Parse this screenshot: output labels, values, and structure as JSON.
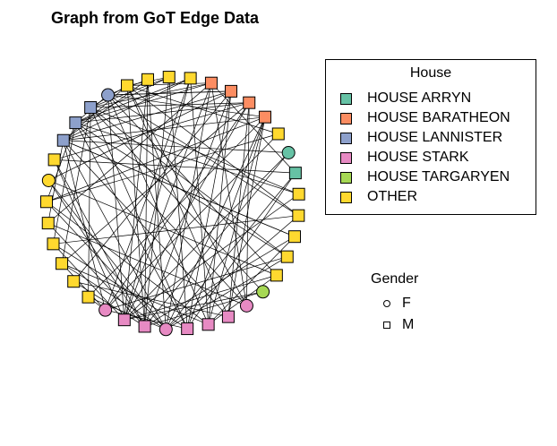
{
  "title": "Graph from GoT Edge Data",
  "colors": {
    "HOUSE ARRYN": "#66c2a5",
    "HOUSE BARATHEON": "#fc8d62",
    "HOUSE LANNISTER": "#8da0cb",
    "HOUSE STARK": "#e78ac3",
    "HOUSE TARGARYEN": "#a6d854",
    "OTHER": "#ffd92f"
  },
  "house_legend": {
    "title": "House",
    "items": [
      "HOUSE ARRYN",
      "HOUSE BARATHEON",
      "HOUSE LANNISTER",
      "HOUSE STARK",
      "HOUSE TARGARYEN",
      "OTHER"
    ]
  },
  "gender_legend": {
    "title": "Gender",
    "items": [
      {
        "label": "F",
        "shape": "circle"
      },
      {
        "label": "M",
        "shape": "square"
      }
    ]
  },
  "graph": {
    "layout": "circle",
    "nodes": [
      {
        "house": "OTHER",
        "gender": "M"
      },
      {
        "house": "OTHER",
        "gender": "M"
      },
      {
        "house": "OTHER",
        "gender": "M"
      },
      {
        "house": "HOUSE BARATHEON",
        "gender": "M"
      },
      {
        "house": "HOUSE BARATHEON",
        "gender": "M"
      },
      {
        "house": "HOUSE BARATHEON",
        "gender": "M"
      },
      {
        "house": "HOUSE BARATHEON",
        "gender": "M"
      },
      {
        "house": "OTHER",
        "gender": "M"
      },
      {
        "house": "HOUSE ARRYN",
        "gender": "F"
      },
      {
        "house": "HOUSE ARRYN",
        "gender": "M"
      },
      {
        "house": "OTHER",
        "gender": "M"
      },
      {
        "house": "OTHER",
        "gender": "M"
      },
      {
        "house": "OTHER",
        "gender": "M"
      },
      {
        "house": "OTHER",
        "gender": "M"
      },
      {
        "house": "OTHER",
        "gender": "M"
      },
      {
        "house": "HOUSE TARGARYEN",
        "gender": "F"
      },
      {
        "house": "HOUSE STARK",
        "gender": "F"
      },
      {
        "house": "HOUSE STARK",
        "gender": "M"
      },
      {
        "house": "HOUSE STARK",
        "gender": "M"
      },
      {
        "house": "HOUSE STARK",
        "gender": "M"
      },
      {
        "house": "HOUSE STARK",
        "gender": "F"
      },
      {
        "house": "HOUSE STARK",
        "gender": "M"
      },
      {
        "house": "HOUSE STARK",
        "gender": "M"
      },
      {
        "house": "HOUSE STARK",
        "gender": "F"
      },
      {
        "house": "OTHER",
        "gender": "M"
      },
      {
        "house": "OTHER",
        "gender": "M"
      },
      {
        "house": "OTHER",
        "gender": "M"
      },
      {
        "house": "OTHER",
        "gender": "M"
      },
      {
        "house": "OTHER",
        "gender": "M"
      },
      {
        "house": "OTHER",
        "gender": "M"
      },
      {
        "house": "OTHER",
        "gender": "F"
      },
      {
        "house": "OTHER",
        "gender": "M"
      },
      {
        "house": "HOUSE LANNISTER",
        "gender": "M"
      },
      {
        "house": "HOUSE LANNISTER",
        "gender": "M"
      },
      {
        "house": "HOUSE LANNISTER",
        "gender": "M"
      },
      {
        "house": "HOUSE LANNISTER",
        "gender": "F"
      },
      {
        "house": "OTHER",
        "gender": "M"
      }
    ],
    "edges": [
      [
        0,
        20
      ],
      [
        0,
        21
      ],
      [
        0,
        22
      ],
      [
        1,
        19
      ],
      [
        1,
        21
      ],
      [
        1,
        36
      ],
      [
        2,
        18
      ],
      [
        2,
        22
      ],
      [
        2,
        23
      ],
      [
        3,
        20
      ],
      [
        3,
        22
      ],
      [
        3,
        33
      ],
      [
        3,
        34
      ],
      [
        3,
        9
      ],
      [
        4,
        19
      ],
      [
        4,
        21
      ],
      [
        4,
        32
      ],
      [
        4,
        35
      ],
      [
        4,
        25
      ],
      [
        5,
        22
      ],
      [
        5,
        26
      ],
      [
        5,
        33
      ],
      [
        5,
        16
      ],
      [
        6,
        20
      ],
      [
        6,
        24
      ],
      [
        6,
        17
      ],
      [
        6,
        35
      ],
      [
        7,
        23
      ],
      [
        7,
        29
      ],
      [
        8,
        21
      ],
      [
        8,
        32
      ],
      [
        9,
        31
      ],
      [
        9,
        19
      ],
      [
        10,
        34
      ],
      [
        10,
        22
      ],
      [
        11,
        27
      ],
      [
        11,
        35
      ],
      [
        12,
        21
      ],
      [
        12,
        32
      ],
      [
        13,
        33
      ],
      [
        13,
        20
      ],
      [
        14,
        30
      ],
      [
        14,
        18
      ],
      [
        15,
        34
      ],
      [
        15,
        22
      ],
      [
        16,
        33
      ],
      [
        16,
        36
      ],
      [
        16,
        28
      ],
      [
        17,
        32
      ],
      [
        17,
        36
      ],
      [
        18,
        35
      ],
      [
        18,
        29
      ],
      [
        19,
        34
      ],
      [
        19,
        33
      ],
      [
        20,
        26
      ],
      [
        20,
        32
      ],
      [
        21,
        36
      ],
      [
        21,
        28
      ],
      [
        22,
        27
      ],
      [
        22,
        35
      ],
      [
        23,
        32
      ],
      [
        23,
        26
      ],
      [
        24,
        20
      ],
      [
        24,
        34
      ],
      [
        25,
        21
      ],
      [
        26,
        18
      ],
      [
        27,
        19
      ],
      [
        28,
        32
      ],
      [
        29,
        33
      ],
      [
        30,
        20
      ],
      [
        31,
        21
      ],
      [
        32,
        36
      ],
      [
        33,
        35
      ],
      [
        34,
        36
      ],
      [
        34,
        5
      ],
      [
        32,
        6
      ],
      [
        35,
        4
      ],
      [
        33,
        10
      ],
      [
        36,
        7
      ],
      [
        32,
        12
      ],
      [
        34,
        13
      ],
      [
        35,
        14
      ],
      [
        33,
        1
      ],
      [
        32,
        2
      ],
      [
        36,
        11
      ],
      [
        35,
        0
      ],
      [
        34,
        26
      ],
      [
        33,
        27
      ],
      [
        4,
        30
      ],
      [
        5,
        31
      ],
      [
        3,
        28
      ],
      [
        6,
        29
      ],
      [
        3,
        16
      ],
      [
        4,
        18
      ],
      [
        5,
        23
      ],
      [
        6,
        19
      ],
      [
        9,
        20
      ],
      [
        8,
        22
      ],
      [
        20,
        29
      ],
      [
        21,
        30
      ],
      [
        22,
        31
      ],
      [
        23,
        24
      ],
      [
        17,
        25
      ],
      [
        19,
        23
      ],
      [
        17,
        5
      ],
      [
        18,
        6
      ],
      [
        2,
        33
      ],
      [
        1,
        34
      ],
      [
        0,
        32
      ],
      [
        3,
        36
      ],
      [
        11,
        20
      ],
      [
        12,
        18
      ],
      [
        13,
        23
      ],
      [
        14,
        22
      ],
      [
        15,
        21
      ]
    ]
  }
}
